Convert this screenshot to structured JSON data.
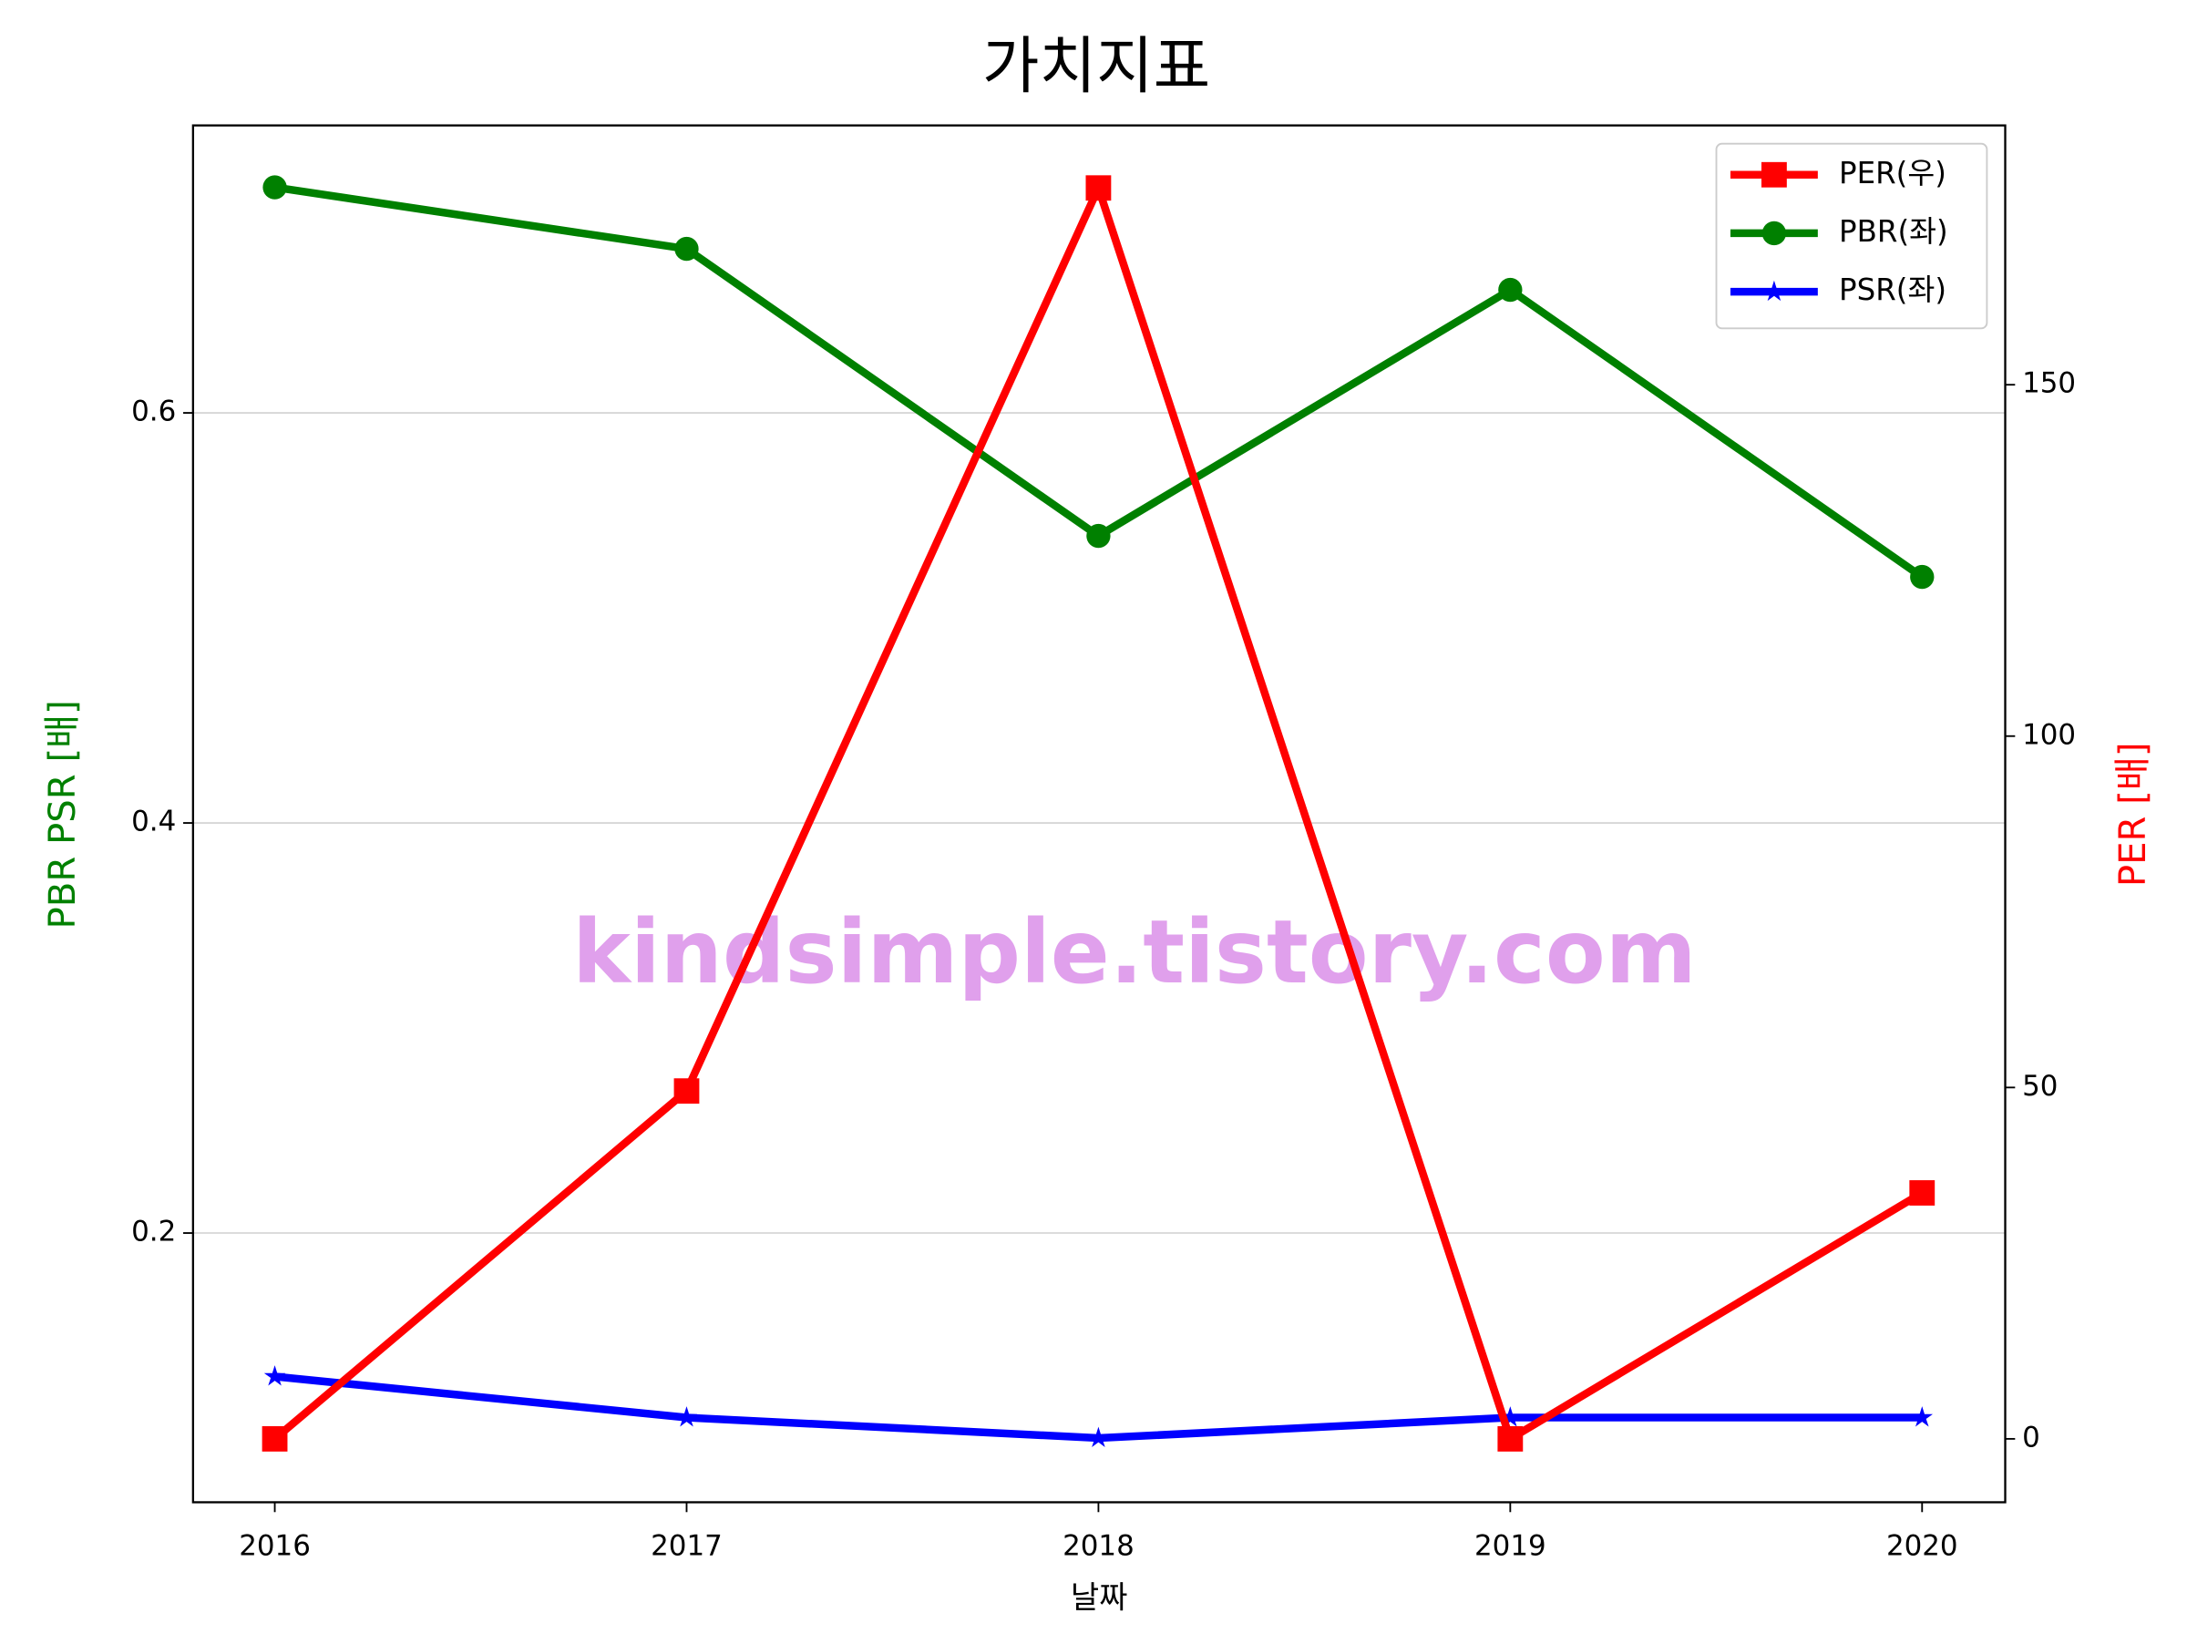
{
  "chart_data": {
    "type": "line",
    "title": "가치지표",
    "x_label": "날짜",
    "y_label": "PBR PSR [배]",
    "y2_label": "PER [배]",
    "annotation": "kindsimple.tistory.com",
    "categories": [
      "2016",
      "2017",
      "2018",
      "2019",
      "2020"
    ],
    "ylim": [
      0.0687,
      0.7402
    ],
    "yticks": [
      0.2,
      0.4,
      0.6
    ],
    "y2lim": [
      -9.02,
      186.9
    ],
    "y2ticks": [
      0,
      50,
      100,
      150
    ],
    "grid": true,
    "legend": "upper right",
    "series": [
      {
        "name": "PER(우)",
        "color": "#ff0000",
        "marker": "square",
        "axis": "y2",
        "values": [
          0,
          49.5,
          178,
          0,
          35
        ]
      },
      {
        "name": "PBR(좌)",
        "color": "#008000",
        "marker": "circle",
        "values": [
          0.71,
          0.68,
          0.54,
          0.66,
          0.52
        ]
      },
      {
        "name": "PSR(좌)",
        "color": "#0000ff",
        "marker": "star",
        "values": [
          0.13,
          0.11,
          0.1,
          0.11,
          0.11
        ]
      }
    ]
  }
}
